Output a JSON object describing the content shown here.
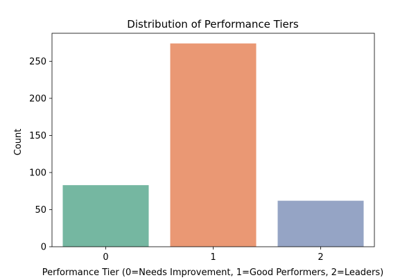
{
  "chart_data": {
    "type": "bar",
    "title": "Distribution of Performance Tiers",
    "xlabel": "Performance Tier (0=Needs Improvement, 1=Good Performers, 2=Leaders)",
    "ylabel": "Count",
    "categories": [
      "0",
      "1",
      "2"
    ],
    "values": [
      83,
      274,
      62
    ],
    "colors": [
      "#75b7a1",
      "#ea9874",
      "#95a4c5"
    ],
    "ylim": [
      0,
      287.7
    ],
    "yticks": [
      0,
      50,
      100,
      150,
      200,
      250
    ],
    "grid": false,
    "legend": "none"
  }
}
